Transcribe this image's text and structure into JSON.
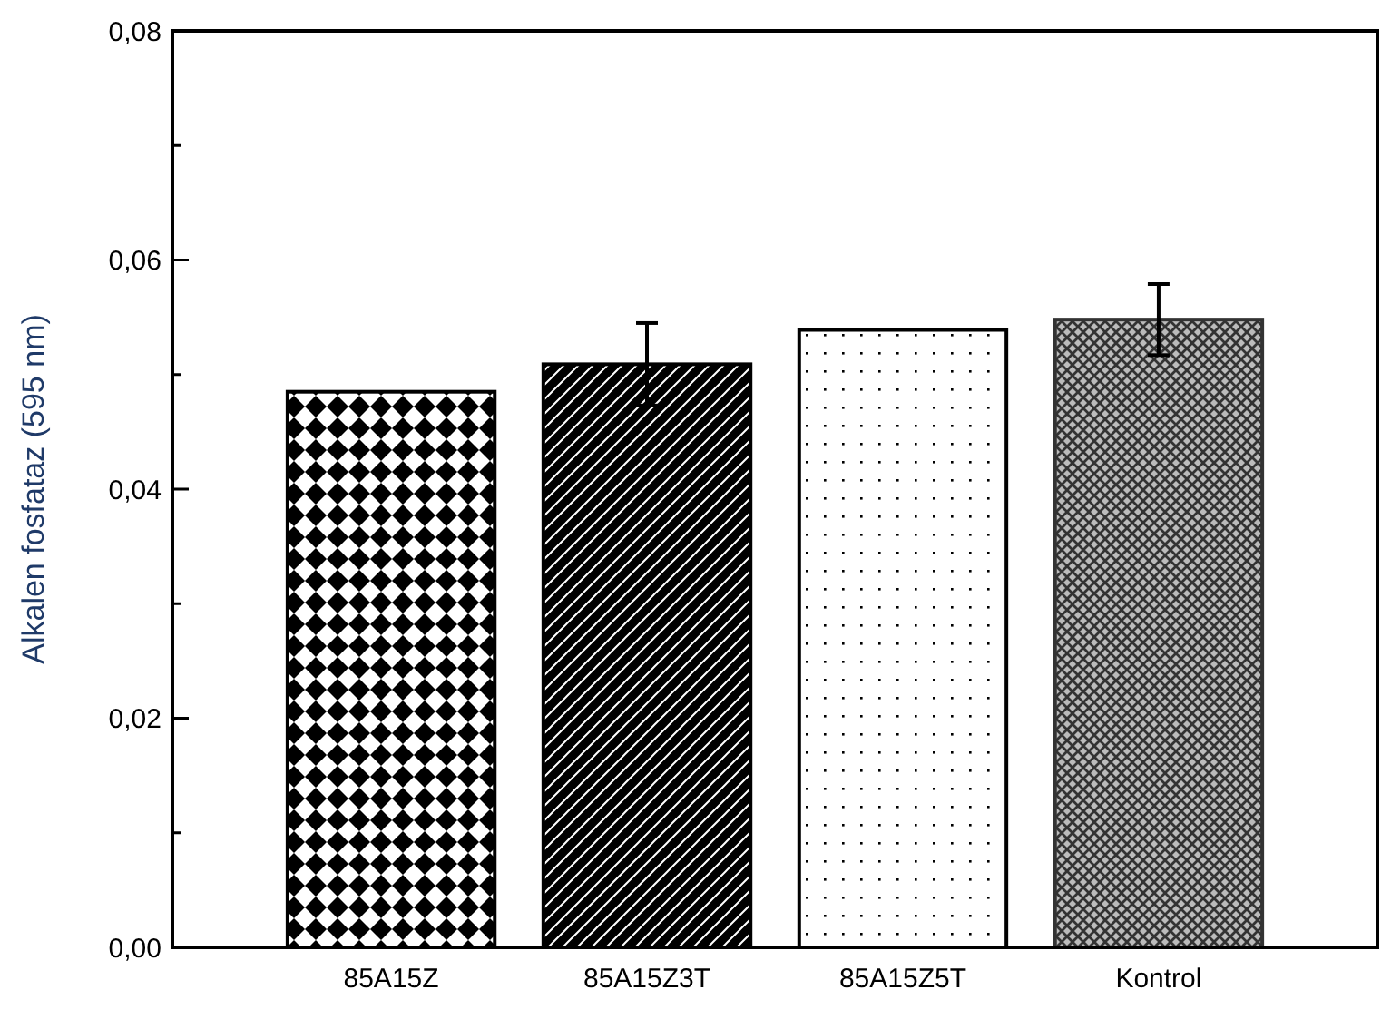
{
  "chart_data": {
    "type": "bar",
    "ylabel": "Alkalen fosfataz (595 nm)",
    "categories": [
      "85A15Z",
      "85A15Z3T",
      "85A15Z5T",
      "Kontrol"
    ],
    "values": [
      0.0485,
      0.0509,
      0.0539,
      0.0548
    ],
    "errors": [
      null,
      0.0036,
      null,
      0.0031
    ],
    "colors": [
      "#000000",
      "#000000",
      "#000000",
      "#333333"
    ],
    "ylim": [
      0,
      0.08
    ],
    "yticks": [
      {
        "value": 0,
        "label": "0,00"
      },
      {
        "value": 0.01,
        "label": null
      },
      {
        "value": 0.02,
        "label": "0,02"
      },
      {
        "value": 0.03,
        "label": null
      },
      {
        "value": 0.04,
        "label": "0,04"
      },
      {
        "value": 0.05,
        "label": null
      },
      {
        "value": 0.06,
        "label": "0,06"
      },
      {
        "value": 0.07,
        "label": null
      },
      {
        "value": 0.08,
        "label": "0,08"
      }
    ]
  }
}
